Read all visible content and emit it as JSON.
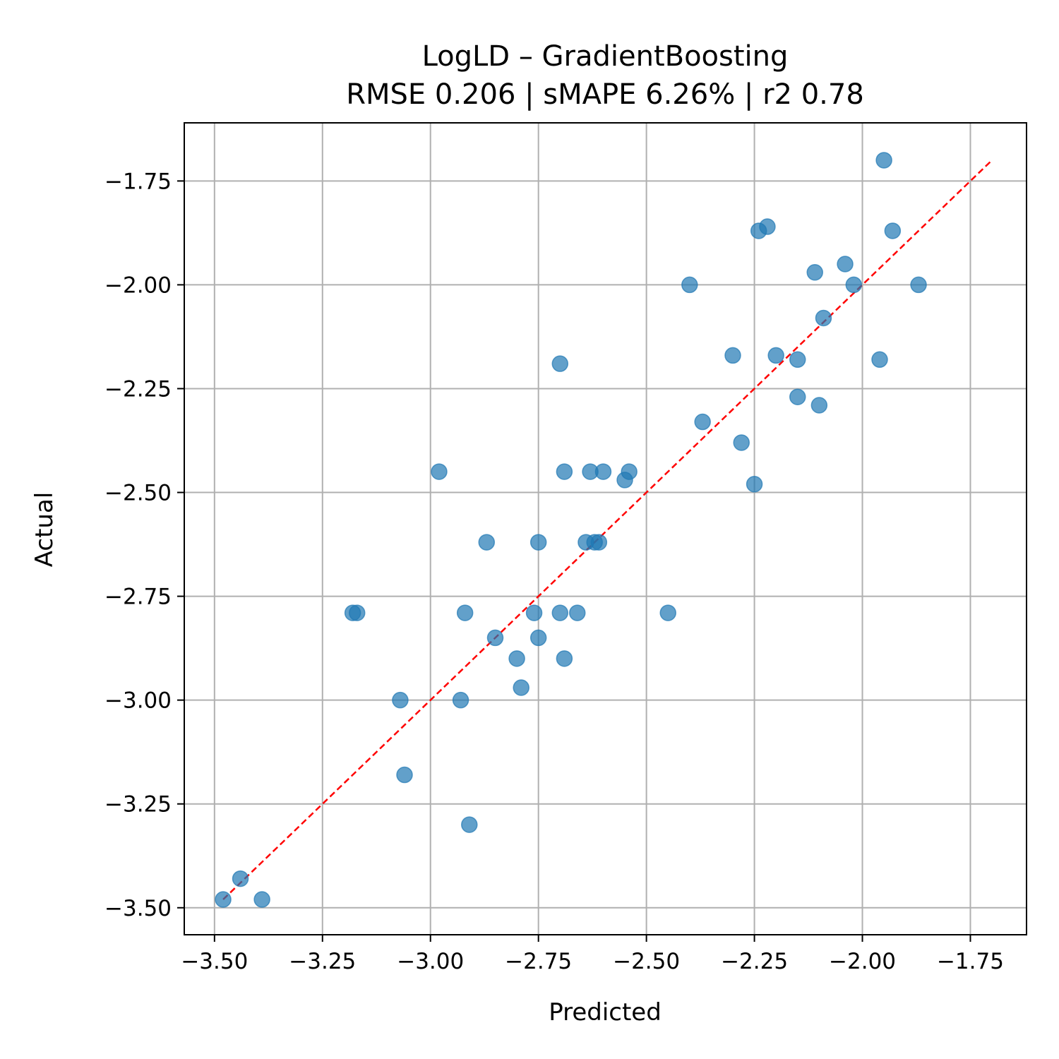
{
  "chart_data": {
    "type": "scatter",
    "title": "LogLD – GradientBoosting",
    "subtitle": "RMSE 0.206 | sMAPE 6.26%  | r2 0.78",
    "xlabel": "Predicted",
    "ylabel": "Actual",
    "xlim": [
      -3.57,
      -1.62
    ],
    "ylim": [
      -3.565,
      -1.61
    ],
    "xticks": [
      -3.5,
      -3.25,
      -3.0,
      -2.75,
      -2.5,
      -2.25,
      -2.0,
      -1.75
    ],
    "yticks": [
      -3.5,
      -3.25,
      -3.0,
      -2.75,
      -2.5,
      -2.25,
      -2.0,
      -1.75
    ],
    "xtick_labels": [
      "−3.50",
      "−3.25",
      "−3.00",
      "−2.75",
      "−2.50",
      "−2.25",
      "−2.00",
      "−1.75"
    ],
    "ytick_labels": [
      "−3.50",
      "−3.25",
      "−3.00",
      "−2.75",
      "−2.50",
      "−2.25",
      "−2.00",
      "−1.75"
    ],
    "grid": true,
    "point_color": "#1f77b4",
    "reference_line": {
      "from": [
        -3.48,
        -3.48
      ],
      "to": [
        -1.7,
        -1.7
      ],
      "color": "#ff0000",
      "style": "dashed"
    },
    "x": [
      -3.48,
      -3.44,
      -3.39,
      -3.18,
      -3.17,
      -3.07,
      -3.06,
      -2.98,
      -2.93,
      -2.92,
      -2.91,
      -2.87,
      -2.85,
      -2.8,
      -2.79,
      -2.76,
      -2.75,
      -2.75,
      -2.7,
      -2.7,
      -2.69,
      -2.69,
      -2.66,
      -2.64,
      -2.63,
      -2.62,
      -2.61,
      -2.6,
      -2.55,
      -2.54,
      -2.45,
      -2.4,
      -2.37,
      -2.3,
      -2.28,
      -2.25,
      -2.24,
      -2.22,
      -2.2,
      -2.15,
      -2.15,
      -2.11,
      -2.1,
      -2.09,
      -2.04,
      -2.02,
      -1.96,
      -1.95,
      -1.93,
      -1.87
    ],
    "y": [
      -3.48,
      -3.43,
      -3.48,
      -2.79,
      -2.79,
      -3.0,
      -3.18,
      -2.45,
      -3.0,
      -2.79,
      -3.3,
      -2.62,
      -2.85,
      -2.9,
      -2.97,
      -2.79,
      -2.62,
      -2.85,
      -2.79,
      -2.19,
      -2.45,
      -2.9,
      -2.79,
      -2.62,
      -2.45,
      -2.62,
      -2.62,
      -2.45,
      -2.47,
      -2.45,
      -2.79,
      -2.0,
      -2.33,
      -2.17,
      -2.38,
      -2.48,
      -1.87,
      -1.86,
      -2.17,
      -2.18,
      -2.27,
      -1.97,
      -2.29,
      -2.08,
      -1.95,
      -2.0,
      -2.18,
      -1.7,
      -1.87,
      -2.0
    ]
  }
}
